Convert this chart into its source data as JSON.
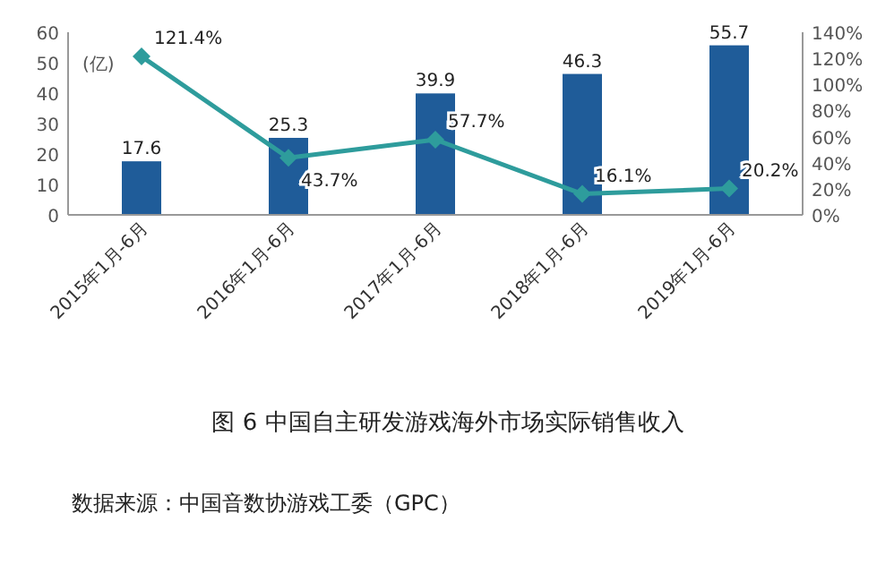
{
  "chart_data": {
    "type": "bar",
    "title": "图 6 中国自主研发游戏海外市场实际销售收入",
    "ylabel": "(亿)",
    "annotations": [
      "数据来源：中国音数协游戏工委（GPC）"
    ],
    "categories": [
      "2015年1月-6月",
      "2016年1月-6月",
      "2017年1月-6月",
      "2018年1月-6月",
      "2019年1月-6月"
    ],
    "series": [
      {
        "color": "#1f5c99",
        "values": [
          17.6,
          25.3,
          39.9,
          46.3,
          55.7
        ],
        "value_labels": [
          "17.6",
          "25.3",
          "39.9",
          "46.3",
          "55.7"
        ]
      },
      {
        "type": "line",
        "axis": "y2",
        "color": "#2e9c9c",
        "marker": "diamond",
        "values": [
          121.4,
          43.7,
          57.7,
          16.1,
          20.2
        ],
        "value_labels": [
          "121.4%",
          "43.7%",
          "57.7%",
          "16.1%",
          "20.2%"
        ]
      }
    ],
    "ylim": [
      0,
      60
    ],
    "yticks": [
      0,
      10,
      20,
      30,
      40,
      50,
      60
    ],
    "y2lim": [
      0,
      140
    ],
    "y2ticks": [
      {
        "value": 0,
        "label": "0%"
      },
      {
        "value": 20,
        "label": "20%"
      },
      {
        "value": 40,
        "label": "40%"
      },
      {
        "value": 60,
        "label": "60%"
      },
      {
        "value": 80,
        "label": "80%"
      },
      {
        "value": 100,
        "label": "100%"
      },
      {
        "value": 120,
        "label": "120%"
      },
      {
        "value": 140,
        "label": "140%"
      }
    ],
    "grid": false
  }
}
